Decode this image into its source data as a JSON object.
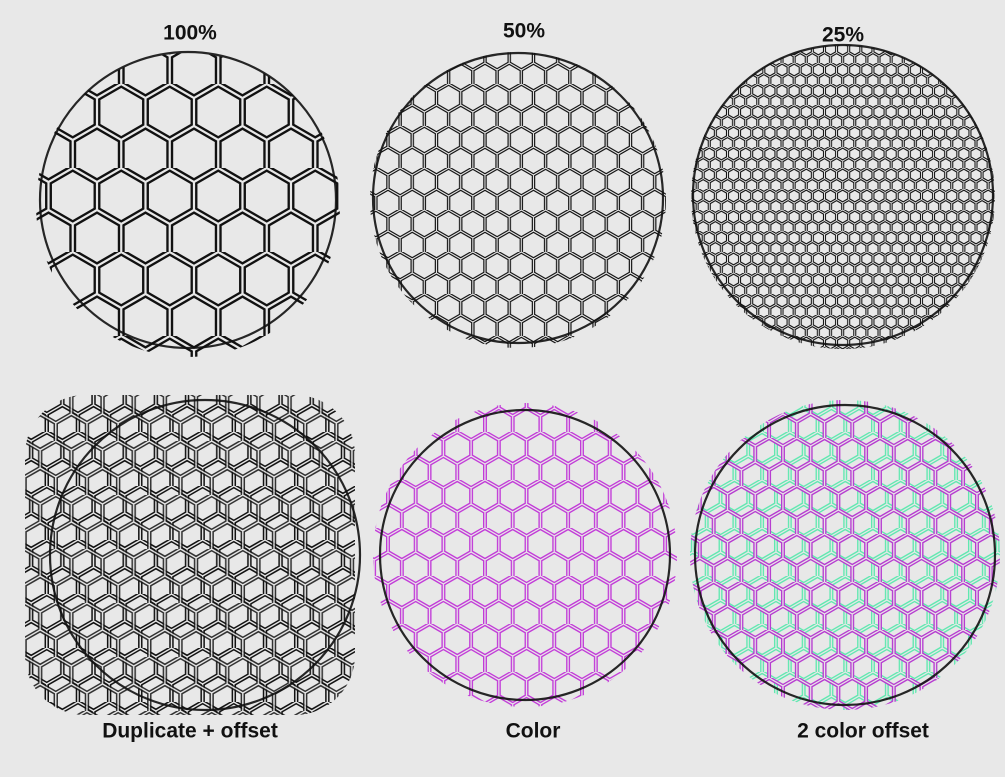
{
  "panels": [
    {
      "label": "100%"
    },
    {
      "label": "50%"
    },
    {
      "label": "25%"
    },
    {
      "label": "Duplicate + offset"
    },
    {
      "label": "Color"
    },
    {
      "label": "2 color offset"
    }
  ]
}
